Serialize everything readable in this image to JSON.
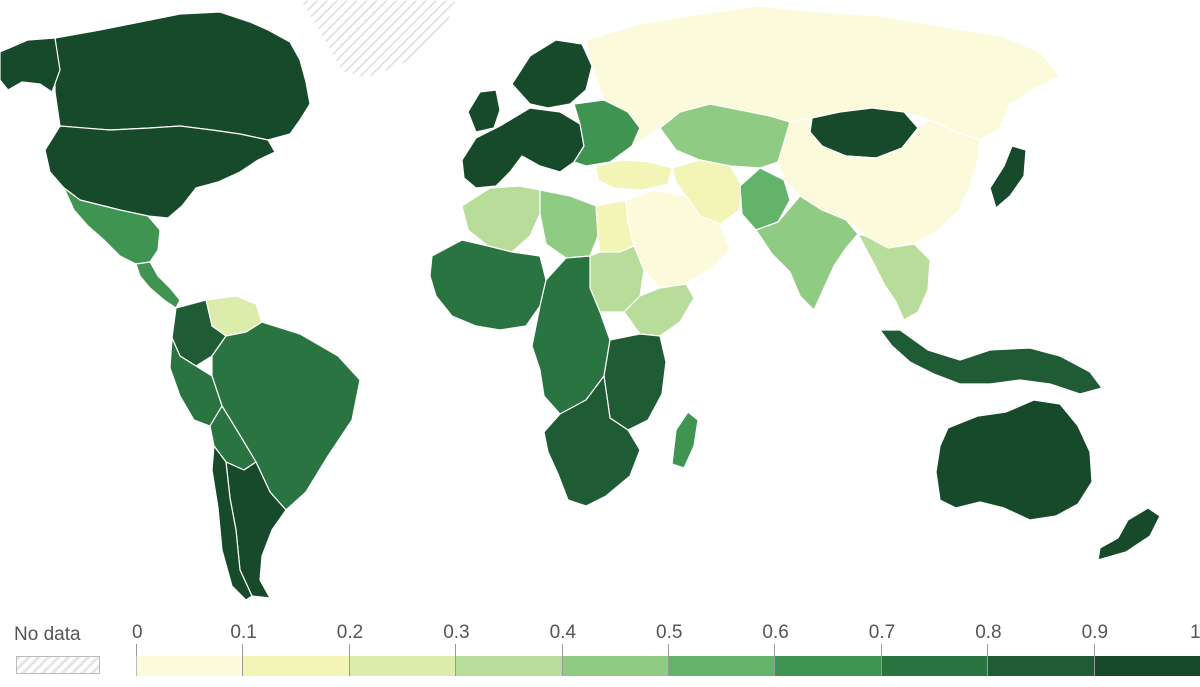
{
  "legend": {
    "no_data_label": "No data",
    "ticks": [
      "0",
      "0.1",
      "0.2",
      "0.3",
      "0.4",
      "0.5",
      "0.6",
      "0.7",
      "0.8",
      "0.9",
      "1"
    ],
    "colors": [
      "#fbfbdc",
      "#f3f5b6",
      "#dcecaa",
      "#b8dd9a",
      "#8fcb82",
      "#64b36a",
      "#3f9452",
      "#2a7442",
      "#1f5c36",
      "#17492b"
    ]
  },
  "map": {
    "no_data_regions": [
      "Greenland"
    ],
    "regions": [
      {
        "name": "Canada",
        "value": 0.95
      },
      {
        "name": "Alaska",
        "value": 0.95
      },
      {
        "name": "United States",
        "value": 0.95
      },
      {
        "name": "Mexico",
        "value": 0.6
      },
      {
        "name": "Central America",
        "value": 0.65
      },
      {
        "name": "Venezuela",
        "value": 0.2
      },
      {
        "name": "Colombia",
        "value": 0.8
      },
      {
        "name": "Brazil",
        "value": 0.75
      },
      {
        "name": "Peru",
        "value": 0.7
      },
      {
        "name": "Bolivia",
        "value": 0.7
      },
      {
        "name": "Argentina",
        "value": 0.95
      },
      {
        "name": "Chile",
        "value": 0.9
      },
      {
        "name": "Western Europe",
        "value": 0.95
      },
      {
        "name": "Scandinavia",
        "value": 0.95
      },
      {
        "name": "United Kingdom",
        "value": 0.95
      },
      {
        "name": "Eastern Europe",
        "value": 0.6
      },
      {
        "name": "Russia",
        "value": 0.05
      },
      {
        "name": "Turkey",
        "value": 0.1
      },
      {
        "name": "Kazakhstan",
        "value": 0.45
      },
      {
        "name": "Mongolia",
        "value": 0.9
      },
      {
        "name": "China",
        "value": 0.05
      },
      {
        "name": "Iran",
        "value": 0.15
      },
      {
        "name": "Saudi Arabia",
        "value": 0.05
      },
      {
        "name": "Pakistan",
        "value": 0.5
      },
      {
        "name": "India",
        "value": 0.45
      },
      {
        "name": "Southeast Asia",
        "value": 0.3
      },
      {
        "name": "Indonesia",
        "value": 0.85
      },
      {
        "name": "Japan",
        "value": 0.9
      },
      {
        "name": "Algeria",
        "value": 0.3
      },
      {
        "name": "Libya",
        "value": 0.45
      },
      {
        "name": "Egypt",
        "value": 0.1
      },
      {
        "name": "Sudan",
        "value": 0.35
      },
      {
        "name": "West Africa",
        "value": 0.7
      },
      {
        "name": "Central Africa",
        "value": 0.7
      },
      {
        "name": "Horn of Africa",
        "value": 0.35
      },
      {
        "name": "East Africa",
        "value": 0.8
      },
      {
        "name": "Southern Africa",
        "value": 0.8
      },
      {
        "name": "Madagascar",
        "value": 0.6
      },
      {
        "name": "Australia",
        "value": 0.95
      },
      {
        "name": "New Zealand",
        "value": 0.95
      }
    ]
  }
}
